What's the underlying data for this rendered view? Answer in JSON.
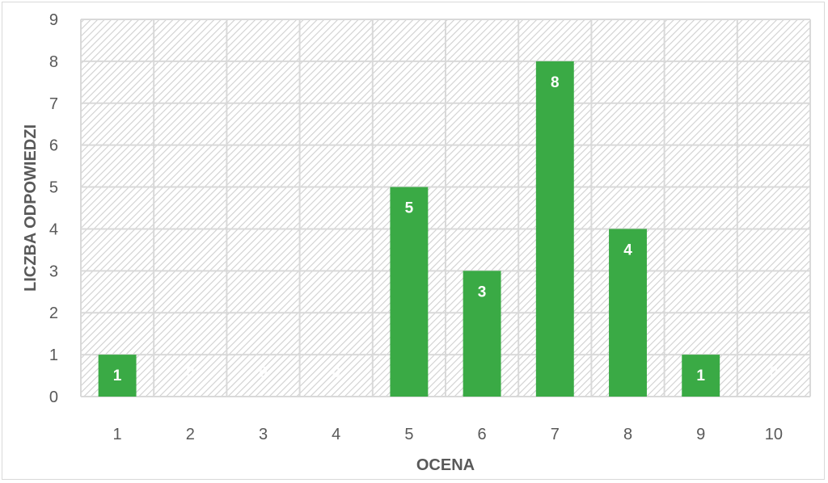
{
  "chart_data": {
    "type": "bar",
    "title": "",
    "xlabel": "OCENA",
    "ylabel": "LICZBA ODPOWIEDZI",
    "categories": [
      "1",
      "2",
      "3",
      "4",
      "5",
      "6",
      "7",
      "8",
      "9",
      "10"
    ],
    "values": [
      1,
      0,
      0,
      0,
      5,
      3,
      8,
      4,
      1,
      0
    ],
    "data_labels": [
      "1",
      "0",
      "0",
      "0",
      "5",
      "3",
      "8",
      "4",
      "1",
      "0"
    ],
    "ylim": [
      0,
      9
    ],
    "yticks": [
      "0",
      "1",
      "2",
      "3",
      "4",
      "5",
      "6",
      "7",
      "8",
      "9"
    ],
    "grid": true,
    "plot_background": "hatched light gray",
    "colors": {
      "bar": "#3aaa45",
      "grid": "#d9d9d9",
      "hatch": "#d0d0d0",
      "text": "#595959",
      "data_label": "#ffffff"
    }
  }
}
